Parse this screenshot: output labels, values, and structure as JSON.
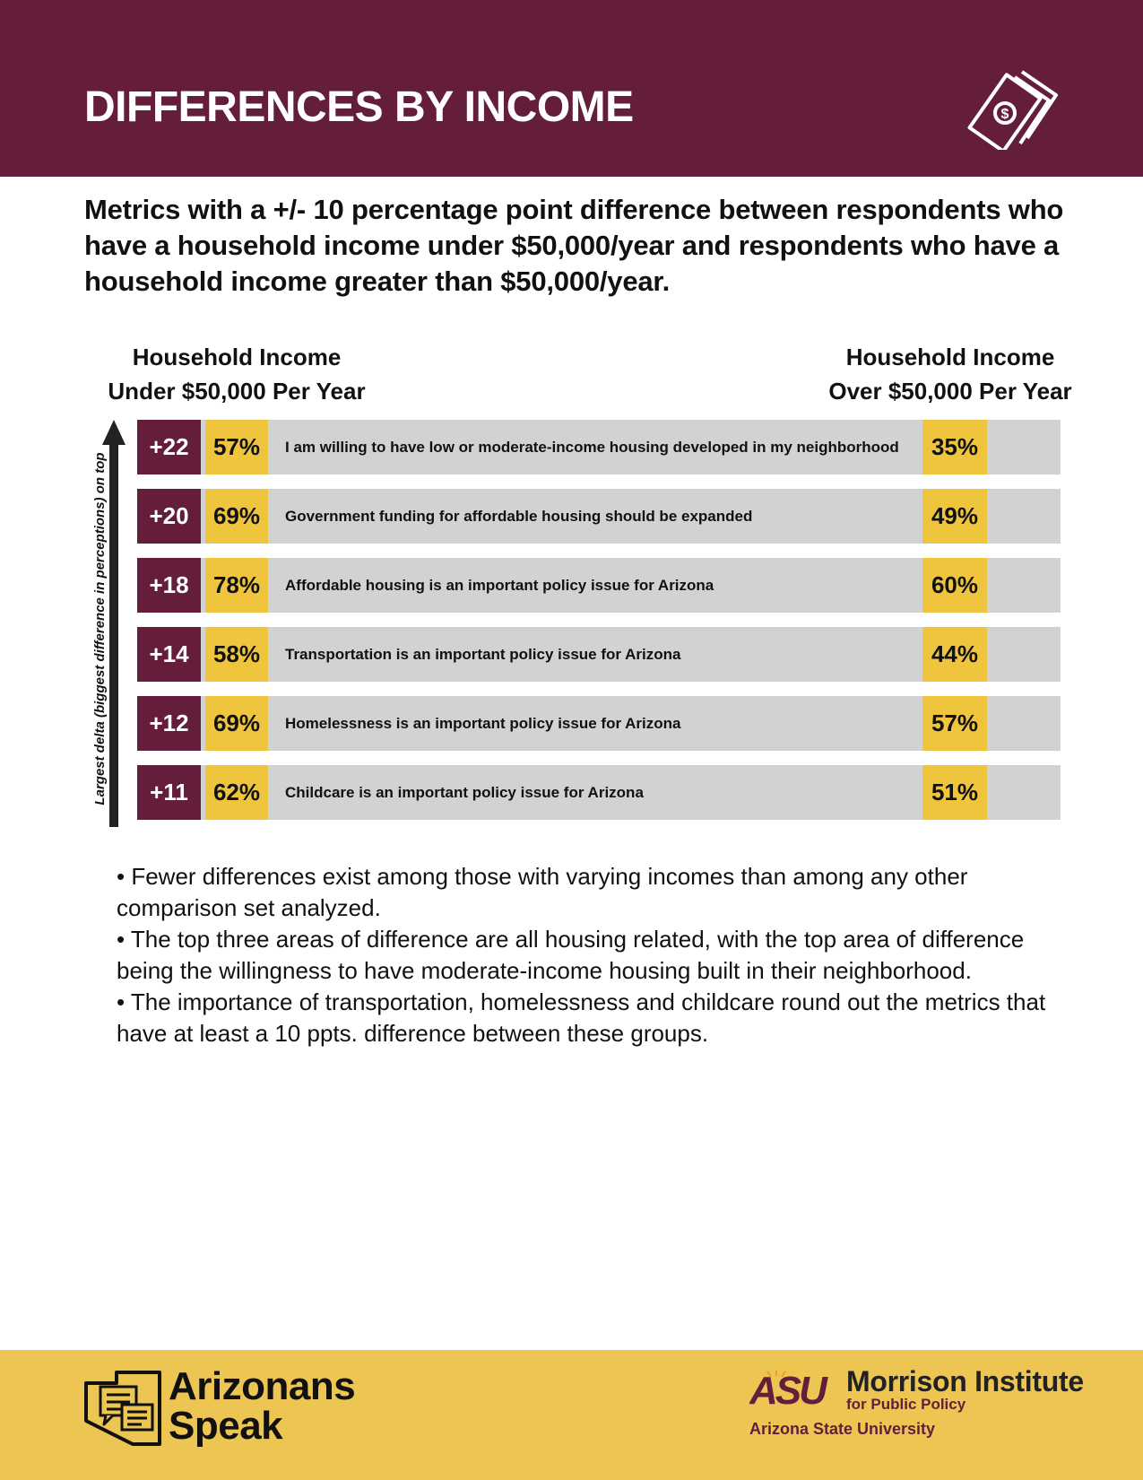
{
  "header": {
    "title": "DIFFERENCES BY INCOME",
    "icon": "money-icon"
  },
  "subtitle": "Metrics with a +/- 10 percentage point difference between respondents who have a household income under $50,000/year and respondents who have a household income greater than $50,000/year.",
  "columns": {
    "left_line1": "Household Income",
    "left_line2": "Under $50,000 Per Year",
    "right_line1": "Household Income",
    "right_line2": "Over $50,000 Per Year"
  },
  "axis_label": "Largest delta (biggest difference in perceptions) on top",
  "rows": [
    {
      "delta": "+22",
      "under": "57%",
      "statement": "I am willing to have low or moderate-income housing developed in my neighborhood",
      "over": "35%"
    },
    {
      "delta": "+20",
      "under": "69%",
      "statement": "Government funding for affordable housing should be expanded",
      "over": "49%"
    },
    {
      "delta": "+18",
      "under": "78%",
      "statement": "Affordable housing  is an important policy issue for Arizona",
      "over": "60%"
    },
    {
      "delta": "+14",
      "under": "58%",
      "statement": "Transportation is an important policy issue for Arizona",
      "over": "44%"
    },
    {
      "delta": "+12",
      "under": "69%",
      "statement": "Homelessness is an important policy issue for Arizona",
      "over": "57%"
    },
    {
      "delta": "+11",
      "under": "62%",
      "statement": "Childcare is an important policy issue for Arizona",
      "over": "51%"
    }
  ],
  "bullets": [
    "• Fewer differences exist among those with varying incomes than among any other comparison set analyzed.",
    "• The top three areas of difference are all housing related, with the top area of difference being the willingness to have moderate-income housing built in their neighborhood.",
    "• The importance of transportation, homelessness and childcare round out the metrics that have at least a 10 ppts. difference between these groups."
  ],
  "footer": {
    "left_logo_line1": "Arizonans",
    "left_logo_line2": "Speak",
    "asu_mark": "ASU",
    "institute": "Morrison Institute",
    "institute_sub": "for Public Policy",
    "university": "Arizona State University"
  },
  "colors": {
    "maroon": "#641e3b",
    "gold": "#f0c53e",
    "gray": "#d1d2d4",
    "footer_gold": "#ecc553"
  }
}
